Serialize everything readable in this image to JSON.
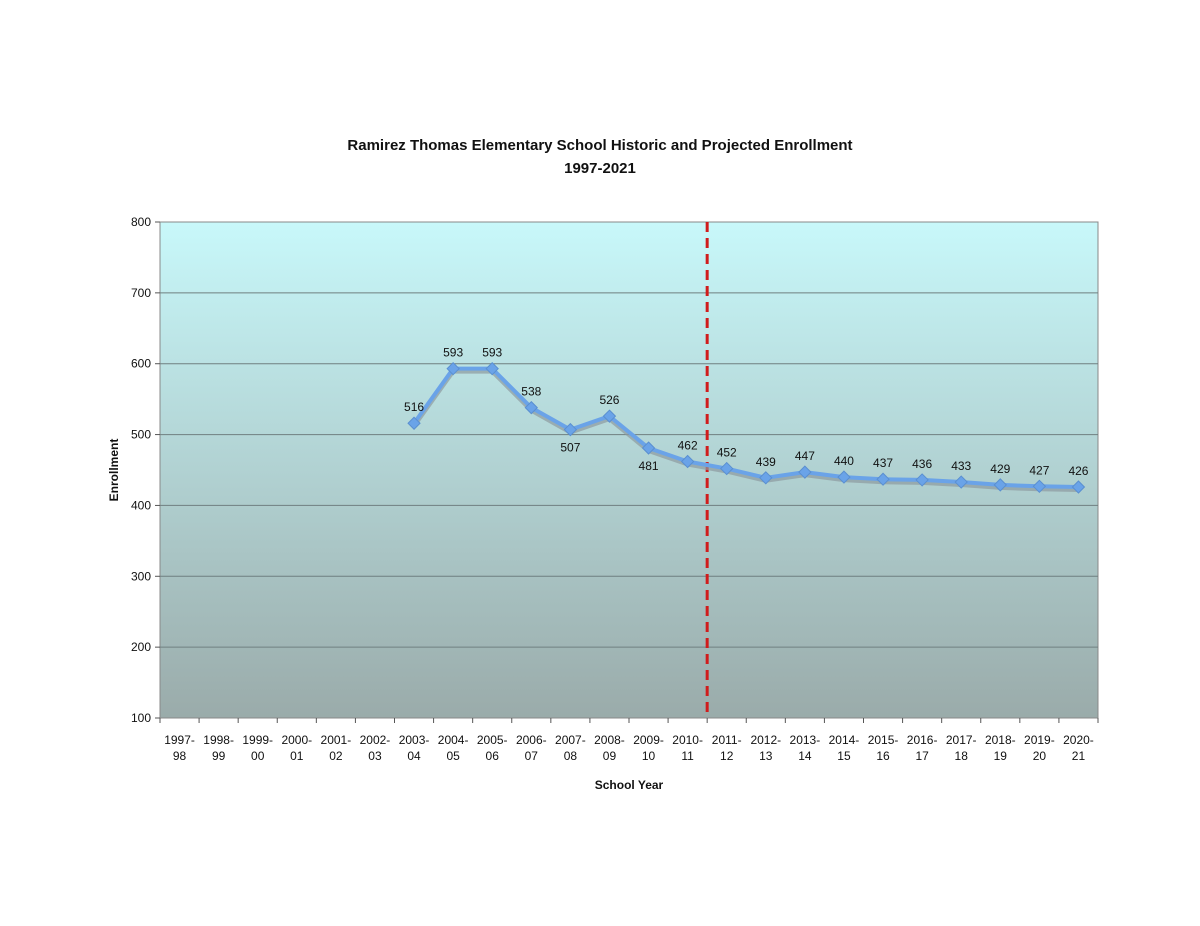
{
  "chart_data": {
    "type": "line",
    "title": "Ramirez Thomas Elementary School Historic and Projected Enrollment",
    "subtitle": "1997-2021",
    "xlabel": "School Year",
    "ylabel": "Enrollment",
    "ylim": [
      100,
      800
    ],
    "yticks": [
      100,
      200,
      300,
      400,
      500,
      600,
      700,
      800
    ],
    "grid": true,
    "legend": "none",
    "categories": [
      [
        "1997-",
        "98"
      ],
      [
        "1998-",
        "99"
      ],
      [
        "1999-",
        "00"
      ],
      [
        "2000-",
        "01"
      ],
      [
        "2001-",
        "02"
      ],
      [
        "2002-",
        "03"
      ],
      [
        "2003-",
        "04"
      ],
      [
        "2004-",
        "05"
      ],
      [
        "2005-",
        "06"
      ],
      [
        "2006-",
        "07"
      ],
      [
        "2007-",
        "08"
      ],
      [
        "2008-",
        "09"
      ],
      [
        "2009-",
        "10"
      ],
      [
        "2010-",
        "11"
      ],
      [
        "2011-",
        "12"
      ],
      [
        "2012-",
        "13"
      ],
      [
        "2013-",
        "14"
      ],
      [
        "2014-",
        "15"
      ],
      [
        "2015-",
        "16"
      ],
      [
        "2016-",
        "17"
      ],
      [
        "2017-",
        "18"
      ],
      [
        "2018-",
        "19"
      ],
      [
        "2019-",
        "20"
      ],
      [
        "2020-",
        "21"
      ]
    ],
    "series": [
      {
        "values": [
          null,
          null,
          null,
          null,
          null,
          null,
          516,
          593,
          593,
          538,
          507,
          526,
          481,
          462,
          452,
          439,
          447,
          440,
          437,
          436,
          433,
          429,
          427,
          426
        ],
        "label_position": [
          "",
          "",
          "",
          "",
          "",
          "",
          "above",
          "above",
          "above",
          "above",
          "below",
          "above",
          "below",
          "above",
          "above",
          "above",
          "above",
          "above",
          "above",
          "above",
          "above",
          "above",
          "above",
          "above"
        ],
        "color": "#6aa3e8"
      }
    ],
    "divider_after_category": "2010-11",
    "divider_color": "#d01c1c",
    "background_gradient": [
      "#c8f8fa",
      "#9aabaa"
    ]
  }
}
